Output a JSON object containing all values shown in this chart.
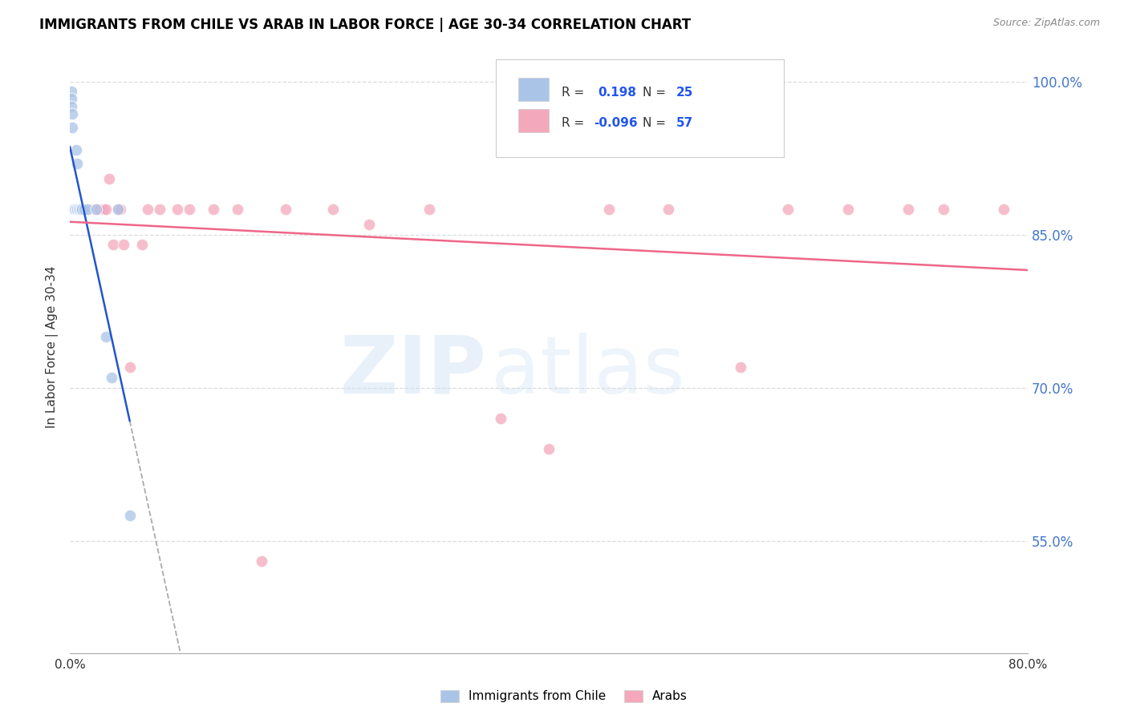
{
  "title": "IMMIGRANTS FROM CHILE VS ARAB IN LABOR FORCE | AGE 30-34 CORRELATION CHART",
  "source": "Source: ZipAtlas.com",
  "ylabel": "In Labor Force | Age 30-34",
  "ytick_values": [
    0.55,
    0.7,
    0.85,
    1.0
  ],
  "xmin": 0.0,
  "xmax": 0.8,
  "ymin": 0.44,
  "ymax": 1.04,
  "watermark_zip": "ZIP",
  "watermark_atlas": "atlas",
  "legend_r_chile": "0.198",
  "legend_n_chile": "25",
  "legend_r_arab": "-0.096",
  "legend_n_arab": "57",
  "chile_color": "#aac4e8",
  "arab_color": "#f4a8bc",
  "chile_line_color": "#2255cc",
  "arab_line_color": "#ee6688",
  "chile_scatter_x": [
    0.001,
    0.001,
    0.001,
    0.002,
    0.002,
    0.002,
    0.003,
    0.003,
    0.004,
    0.004,
    0.005,
    0.005,
    0.006,
    0.006,
    0.007,
    0.008,
    0.009,
    0.01,
    0.012,
    0.015,
    0.022,
    0.03,
    0.035,
    0.04,
    0.05
  ],
  "chile_scatter_y": [
    0.99,
    0.983,
    0.975,
    0.968,
    0.955,
    0.875,
    0.875,
    0.875,
    0.875,
    0.875,
    0.933,
    0.875,
    0.92,
    0.875,
    0.875,
    0.875,
    0.875,
    0.875,
    0.875,
    0.875,
    0.875,
    0.75,
    0.71,
    0.875,
    0.575
  ],
  "arab_scatter_x": [
    0.001,
    0.001,
    0.001,
    0.002,
    0.002,
    0.003,
    0.003,
    0.004,
    0.004,
    0.005,
    0.005,
    0.006,
    0.006,
    0.007,
    0.008,
    0.008,
    0.009,
    0.01,
    0.011,
    0.012,
    0.013,
    0.015,
    0.016,
    0.018,
    0.02,
    0.022,
    0.025,
    0.028,
    0.03,
    0.033,
    0.036,
    0.04,
    0.042,
    0.045,
    0.05,
    0.06,
    0.065,
    0.075,
    0.09,
    0.1,
    0.12,
    0.14,
    0.16,
    0.18,
    0.22,
    0.25,
    0.3,
    0.36,
    0.4,
    0.45,
    0.5,
    0.56,
    0.6,
    0.65,
    0.7,
    0.73,
    0.78
  ],
  "arab_scatter_y": [
    0.875,
    0.875,
    0.875,
    0.875,
    0.875,
    0.875,
    0.875,
    0.875,
    0.875,
    0.875,
    0.875,
    0.875,
    0.875,
    0.875,
    0.875,
    0.875,
    0.875,
    0.875,
    0.875,
    0.875,
    0.875,
    0.875,
    0.875,
    0.875,
    0.875,
    0.875,
    0.875,
    0.875,
    0.875,
    0.905,
    0.84,
    0.875,
    0.875,
    0.84,
    0.72,
    0.84,
    0.875,
    0.875,
    0.875,
    0.875,
    0.875,
    0.875,
    0.53,
    0.875,
    0.875,
    0.86,
    0.875,
    0.67,
    0.64,
    0.875,
    0.875,
    0.72,
    0.875,
    0.875,
    0.875,
    0.875,
    0.875
  ]
}
